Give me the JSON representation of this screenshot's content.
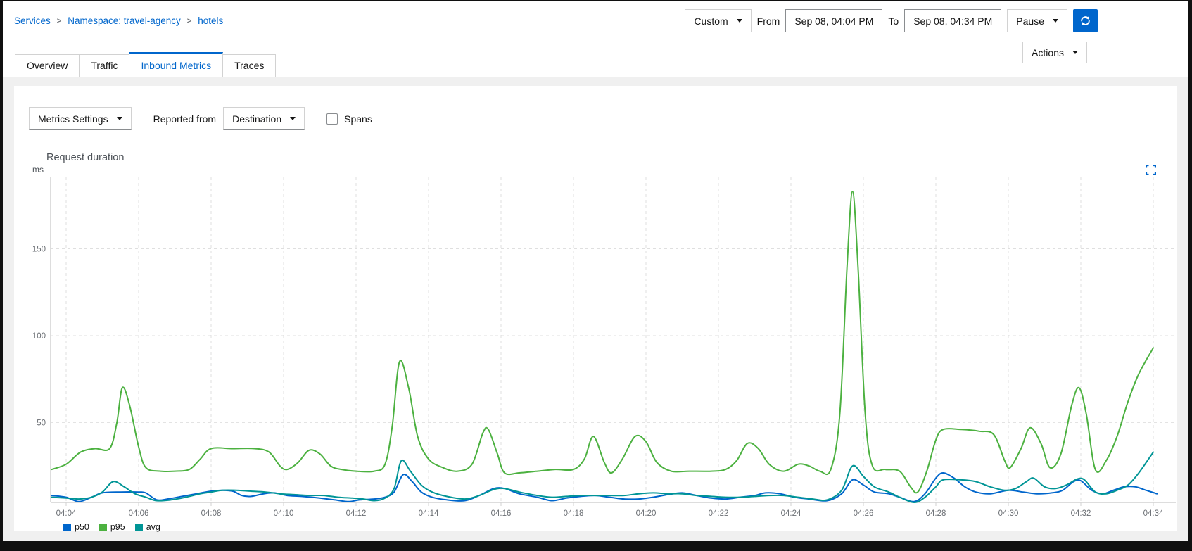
{
  "breadcrumb": {
    "items": [
      "Services",
      "Namespace: travel-agency",
      "hotels"
    ]
  },
  "toolbar": {
    "duration_label": "Custom",
    "from_label": "From",
    "from_value": "Sep 08, 04:04 PM",
    "to_label": "To",
    "to_value": "Sep 08, 04:34 PM",
    "refresh_label": "Pause",
    "actions_label": "Actions"
  },
  "tabs": [
    {
      "label": "Overview"
    },
    {
      "label": "Traffic"
    },
    {
      "label": "Inbound Metrics"
    },
    {
      "label": "Traces"
    }
  ],
  "metrics_toolbar": {
    "settings_label": "Metrics Settings",
    "reported_from_label": "Reported from",
    "reported_from_value": "Destination",
    "spans_label": "Spans",
    "spans_checked": false
  },
  "chart_data": {
    "type": "line",
    "title": "Request duration",
    "ylabel": "ms",
    "grid": "dashed",
    "legend_position": "bottom-left",
    "x_axis": {
      "tick_labels": [
        "04:04",
        "04:06",
        "04:08",
        "04:10",
        "04:12",
        "04:14",
        "04:16",
        "04:18",
        "04:20",
        "04:22",
        "04:24",
        "04:26",
        "04:28",
        "04:30",
        "04:32",
        "04:34"
      ],
      "minutes_per_tick": 2
    },
    "y_axis": {
      "ticks": [
        50,
        100,
        150
      ],
      "unit": "ms",
      "approx_max": 190
    },
    "series": [
      {
        "name": "p50",
        "color": "#0066cc",
        "points": [
          [
            -0.4,
            8
          ],
          [
            0,
            7
          ],
          [
            0.35,
            4.5
          ],
          [
            0.7,
            7
          ],
          [
            1.0,
            9.5
          ],
          [
            1.5,
            10
          ],
          [
            2.0,
            10
          ],
          [
            2.2,
            9.5
          ],
          [
            2.5,
            5.5
          ],
          [
            2.8,
            6
          ],
          [
            3.2,
            7.5
          ],
          [
            3.6,
            9
          ],
          [
            4.0,
            10.5
          ],
          [
            4.3,
            11
          ],
          [
            4.6,
            10.5
          ],
          [
            4.85,
            8
          ],
          [
            5.1,
            7.5
          ],
          [
            5.45,
            9
          ],
          [
            5.75,
            9.5
          ],
          [
            6.1,
            8
          ],
          [
            6.5,
            7.5
          ],
          [
            7.0,
            6.5
          ],
          [
            7.4,
            5.5
          ],
          [
            7.8,
            4.5
          ],
          [
            8.1,
            5.5
          ],
          [
            8.5,
            6
          ],
          [
            8.8,
            7
          ],
          [
            9.05,
            10
          ],
          [
            9.3,
            20
          ],
          [
            9.55,
            16
          ],
          [
            9.8,
            10
          ],
          [
            10.1,
            7
          ],
          [
            10.5,
            5.5
          ],
          [
            11.0,
            5
          ],
          [
            11.4,
            8
          ],
          [
            11.8,
            12
          ],
          [
            12.1,
            12
          ],
          [
            12.5,
            9
          ],
          [
            13.0,
            7
          ],
          [
            13.4,
            5
          ],
          [
            13.8,
            6.5
          ],
          [
            14.2,
            7.5
          ],
          [
            14.6,
            8
          ],
          [
            15.0,
            7
          ],
          [
            15.4,
            6
          ],
          [
            15.8,
            6
          ],
          [
            16.2,
            7
          ],
          [
            16.6,
            8.5
          ],
          [
            17.0,
            9.5
          ],
          [
            17.4,
            8
          ],
          [
            17.8,
            6.5
          ],
          [
            18.2,
            6
          ],
          [
            18.6,
            7
          ],
          [
            19.0,
            8
          ],
          [
            19.3,
            9.5
          ],
          [
            19.7,
            9
          ],
          [
            20.1,
            7
          ],
          [
            20.5,
            6
          ],
          [
            21.0,
            5
          ],
          [
            21.4,
            9
          ],
          [
            21.7,
            17
          ],
          [
            22.0,
            14
          ],
          [
            22.3,
            10
          ],
          [
            22.7,
            9
          ],
          [
            23.0,
            7
          ],
          [
            23.4,
            4.5
          ],
          [
            23.7,
            9
          ],
          [
            24.0,
            18
          ],
          [
            24.2,
            21
          ],
          [
            24.5,
            18
          ],
          [
            24.8,
            13
          ],
          [
            25.1,
            10
          ],
          [
            25.5,
            9
          ],
          [
            26.0,
            11
          ],
          [
            26.4,
            10
          ],
          [
            26.8,
            9
          ],
          [
            27.2,
            9.5
          ],
          [
            27.5,
            11
          ],
          [
            27.8,
            16
          ],
          [
            28.0,
            16.5
          ],
          [
            28.3,
            11
          ],
          [
            28.6,
            9
          ],
          [
            28.9,
            11
          ],
          [
            29.2,
            13
          ],
          [
            29.5,
            13
          ],
          [
            29.8,
            11
          ],
          [
            30.1,
            9
          ]
        ]
      },
      {
        "name": "p95",
        "color": "#4cb140",
        "points": [
          [
            -0.4,
            23
          ],
          [
            0,
            26
          ],
          [
            0.4,
            33
          ],
          [
            0.8,
            35
          ],
          [
            1.2,
            35
          ],
          [
            1.4,
            50
          ],
          [
            1.55,
            70
          ],
          [
            1.75,
            60
          ],
          [
            2.0,
            36
          ],
          [
            2.2,
            24
          ],
          [
            2.6,
            22
          ],
          [
            3.0,
            22
          ],
          [
            3.4,
            23
          ],
          [
            3.7,
            29
          ],
          [
            4.0,
            35
          ],
          [
            4.6,
            35
          ],
          [
            5.2,
            35
          ],
          [
            5.6,
            33
          ],
          [
            5.9,
            25
          ],
          [
            6.1,
            23
          ],
          [
            6.4,
            27
          ],
          [
            6.7,
            34
          ],
          [
            7.0,
            32
          ],
          [
            7.3,
            25
          ],
          [
            7.6,
            23
          ],
          [
            8.0,
            22
          ],
          [
            8.5,
            22
          ],
          [
            8.8,
            26
          ],
          [
            9.0,
            48
          ],
          [
            9.2,
            85
          ],
          [
            9.45,
            70
          ],
          [
            9.7,
            42
          ],
          [
            10.0,
            29
          ],
          [
            10.4,
            24
          ],
          [
            10.8,
            22
          ],
          [
            11.2,
            26
          ],
          [
            11.5,
            44
          ],
          [
            11.65,
            46
          ],
          [
            11.9,
            32
          ],
          [
            12.1,
            21
          ],
          [
            12.5,
            21
          ],
          [
            13.0,
            22
          ],
          [
            13.5,
            23
          ],
          [
            14.0,
            23
          ],
          [
            14.3,
            29
          ],
          [
            14.55,
            42
          ],
          [
            14.85,
            27
          ],
          [
            15.05,
            21
          ],
          [
            15.35,
            29
          ],
          [
            15.7,
            42
          ],
          [
            16.0,
            39
          ],
          [
            16.3,
            27
          ],
          [
            16.7,
            22
          ],
          [
            17.2,
            22
          ],
          [
            17.8,
            22
          ],
          [
            18.2,
            23
          ],
          [
            18.5,
            28
          ],
          [
            18.8,
            38
          ],
          [
            19.1,
            35
          ],
          [
            19.4,
            26
          ],
          [
            19.8,
            22
          ],
          [
            20.2,
            26
          ],
          [
            20.5,
            25
          ],
          [
            20.8,
            22
          ],
          [
            21.1,
            23
          ],
          [
            21.35,
            55
          ],
          [
            21.55,
            140
          ],
          [
            21.7,
            183
          ],
          [
            21.85,
            140
          ],
          [
            22.05,
            55
          ],
          [
            22.25,
            25
          ],
          [
            22.6,
            23
          ],
          [
            23.0,
            22
          ],
          [
            23.3,
            13
          ],
          [
            23.5,
            10
          ],
          [
            23.75,
            22
          ],
          [
            24.0,
            40
          ],
          [
            24.2,
            46
          ],
          [
            24.7,
            46
          ],
          [
            25.2,
            45
          ],
          [
            25.6,
            43
          ],
          [
            25.9,
            28
          ],
          [
            26.05,
            24
          ],
          [
            26.35,
            35
          ],
          [
            26.6,
            47
          ],
          [
            26.9,
            38
          ],
          [
            27.15,
            24
          ],
          [
            27.45,
            32
          ],
          [
            27.75,
            60
          ],
          [
            27.95,
            70
          ],
          [
            28.15,
            55
          ],
          [
            28.4,
            23
          ],
          [
            28.7,
            28
          ],
          [
            29.0,
            42
          ],
          [
            29.3,
            62
          ],
          [
            29.6,
            78
          ],
          [
            30.0,
            93
          ]
        ]
      },
      {
        "name": "avg",
        "color": "#009596",
        "points": [
          [
            -0.4,
            7
          ],
          [
            0,
            6.5
          ],
          [
            0.35,
            6
          ],
          [
            0.7,
            7
          ],
          [
            1.0,
            10
          ],
          [
            1.3,
            16
          ],
          [
            1.6,
            13
          ],
          [
            1.9,
            9
          ],
          [
            2.2,
            7
          ],
          [
            2.5,
            5
          ],
          [
            2.9,
            5.5
          ],
          [
            3.3,
            7
          ],
          [
            3.7,
            9
          ],
          [
            4.0,
            10
          ],
          [
            4.3,
            11
          ],
          [
            4.7,
            11
          ],
          [
            5.1,
            10.5
          ],
          [
            5.5,
            10
          ],
          [
            5.9,
            9
          ],
          [
            6.3,
            8.5
          ],
          [
            6.7,
            8
          ],
          [
            7.1,
            8
          ],
          [
            7.5,
            7
          ],
          [
            7.9,
            6.5
          ],
          [
            8.2,
            6
          ],
          [
            8.5,
            5
          ],
          [
            8.8,
            6.5
          ],
          [
            9.05,
            12
          ],
          [
            9.25,
            28
          ],
          [
            9.5,
            22
          ],
          [
            9.8,
            14
          ],
          [
            10.1,
            10
          ],
          [
            10.5,
            7.5
          ],
          [
            11.0,
            6
          ],
          [
            11.4,
            8
          ],
          [
            11.8,
            11.5
          ],
          [
            12.1,
            12
          ],
          [
            12.5,
            10
          ],
          [
            13.0,
            8
          ],
          [
            13.4,
            7
          ],
          [
            13.8,
            7.5
          ],
          [
            14.2,
            8
          ],
          [
            14.6,
            8
          ],
          [
            15.0,
            8
          ],
          [
            15.4,
            8
          ],
          [
            15.8,
            9
          ],
          [
            16.2,
            9.5
          ],
          [
            16.6,
            9
          ],
          [
            17.0,
            9
          ],
          [
            17.4,
            8
          ],
          [
            17.8,
            7.5
          ],
          [
            18.2,
            7
          ],
          [
            18.6,
            7
          ],
          [
            19.0,
            7.5
          ],
          [
            19.4,
            8
          ],
          [
            19.8,
            8
          ],
          [
            20.2,
            7
          ],
          [
            20.6,
            6
          ],
          [
            21.0,
            5.5
          ],
          [
            21.4,
            11
          ],
          [
            21.7,
            25
          ],
          [
            22.0,
            19
          ],
          [
            22.3,
            13
          ],
          [
            22.7,
            10
          ],
          [
            23.0,
            7
          ],
          [
            23.4,
            4
          ],
          [
            23.7,
            7
          ],
          [
            24.0,
            13
          ],
          [
            24.2,
            17
          ],
          [
            24.7,
            17
          ],
          [
            25.1,
            16
          ],
          [
            25.5,
            13
          ],
          [
            25.9,
            11
          ],
          [
            26.2,
            12
          ],
          [
            26.5,
            16
          ],
          [
            26.7,
            18
          ],
          [
            27.0,
            13
          ],
          [
            27.3,
            12
          ],
          [
            27.6,
            14
          ],
          [
            27.9,
            17.5
          ],
          [
            28.1,
            17
          ],
          [
            28.4,
            10
          ],
          [
            28.7,
            9
          ],
          [
            29.0,
            11
          ],
          [
            29.3,
            14
          ],
          [
            29.6,
            21
          ],
          [
            30.0,
            33
          ]
        ]
      }
    ]
  }
}
